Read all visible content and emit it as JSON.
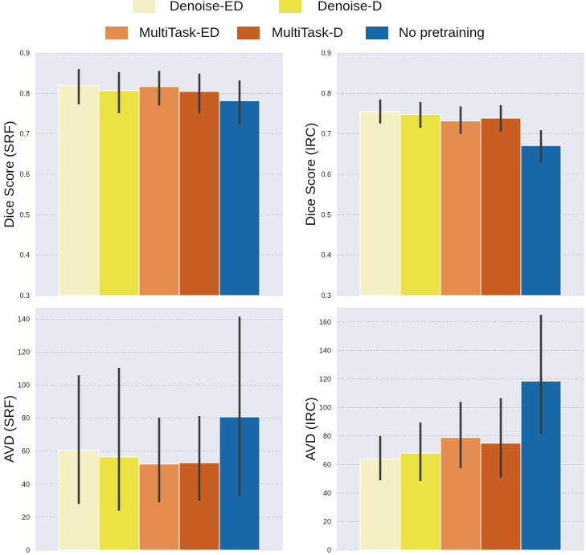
{
  "legend": {
    "placement": "top-center",
    "entries": [
      {
        "name": "Denoise-ED",
        "color": "#f5efc4"
      },
      {
        "name": "Denoise-D",
        "color": "#ebe244"
      },
      {
        "name": "MultiTask-ED",
        "color": "#e58d4f"
      },
      {
        "name": "MultiTask-D",
        "color": "#c95e23"
      },
      {
        "name": "No pretraining",
        "color": "#1868a8"
      }
    ]
  },
  "chart_data": [
    {
      "type": "bar",
      "ylabel": "Dice Score (SRF)",
      "ylim": [
        0.3,
        0.9
      ],
      "yticks": [
        0.3,
        0.4,
        0.5,
        0.6,
        0.7,
        0.8,
        0.9
      ],
      "grid": true,
      "series": [
        {
          "name": "Denoise-ED",
          "value": 0.82,
          "err_low": 0.773,
          "err_high": 0.86
        },
        {
          "name": "Denoise-D",
          "value": 0.807,
          "err_low": 0.751,
          "err_high": 0.853
        },
        {
          "name": "MultiTask-ED",
          "value": 0.817,
          "err_low": 0.77,
          "err_high": 0.856
        },
        {
          "name": "MultiTask-D",
          "value": 0.805,
          "err_low": 0.75,
          "err_high": 0.849
        },
        {
          "name": "No pretraining",
          "value": 0.782,
          "err_low": 0.724,
          "err_high": 0.832
        }
      ]
    },
    {
      "type": "bar",
      "ylabel": "Dice Score (IRC)",
      "ylim": [
        0.3,
        0.9
      ],
      "yticks": [
        0.3,
        0.4,
        0.5,
        0.6,
        0.7,
        0.8,
        0.9
      ],
      "grid": true,
      "series": [
        {
          "name": "Denoise-ED",
          "value": 0.755,
          "err_low": 0.726,
          "err_high": 0.785
        },
        {
          "name": "Denoise-D",
          "value": 0.748,
          "err_low": 0.715,
          "err_high": 0.779
        },
        {
          "name": "MultiTask-ED",
          "value": 0.732,
          "err_low": 0.7,
          "err_high": 0.768
        },
        {
          "name": "MultiTask-D",
          "value": 0.739,
          "err_low": 0.706,
          "err_high": 0.771
        },
        {
          "name": "No pretraining",
          "value": 0.671,
          "err_low": 0.63,
          "err_high": 0.709
        }
      ]
    },
    {
      "type": "bar",
      "ylabel": "AVD (SRF)",
      "ylim": [
        0,
        147
      ],
      "yticks": [
        0,
        20,
        40,
        60,
        80,
        100,
        120,
        140
      ],
      "grid": true,
      "series": [
        {
          "name": "Denoise-ED",
          "value": 60.5,
          "err_low": 28,
          "err_high": 106
        },
        {
          "name": "Denoise-D",
          "value": 56.5,
          "err_low": 24,
          "err_high": 110.5
        },
        {
          "name": "MultiTask-ED",
          "value": 52.2,
          "err_low": 29,
          "err_high": 80.3
        },
        {
          "name": "MultiTask-D",
          "value": 53,
          "err_low": 30,
          "err_high": 81.2
        },
        {
          "name": "No pretraining",
          "value": 80.8,
          "err_low": 33,
          "err_high": 141.5
        }
      ]
    },
    {
      "type": "bar",
      "ylabel": "AVD (IRC)",
      "ylim": [
        0,
        170
      ],
      "yticks": [
        0,
        20,
        40,
        60,
        80,
        100,
        120,
        140,
        160
      ],
      "grid": true,
      "series": [
        {
          "name": "Denoise-ED",
          "value": 64,
          "err_low": 49,
          "err_high": 80
        },
        {
          "name": "Denoise-D",
          "value": 68,
          "err_low": 48.5,
          "err_high": 89.5
        },
        {
          "name": "MultiTask-ED",
          "value": 79,
          "err_low": 57.5,
          "err_high": 104
        },
        {
          "name": "MultiTask-D",
          "value": 75,
          "err_low": 51,
          "err_high": 106.5
        },
        {
          "name": "No pretraining",
          "value": 118.5,
          "err_low": 81.5,
          "err_high": 165
        }
      ]
    }
  ]
}
